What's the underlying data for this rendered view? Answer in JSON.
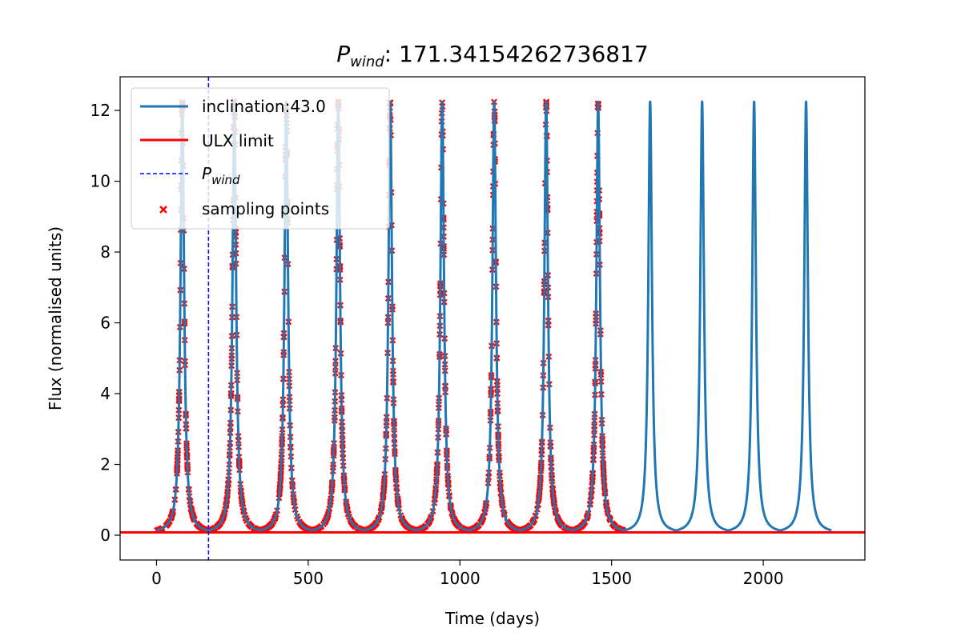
{
  "chart_data": {
    "type": "line",
    "title": "P_wind : 171.34154262736817",
    "title_symbol": "P",
    "title_subscript": "wind",
    "title_value": ": 171.34154262736817",
    "xlabel": "Time (days)",
    "ylabel": "Flux (normalised units)",
    "xlim": [
      -120,
      2335
    ],
    "ylim": [
      -0.7,
      12.95
    ],
    "x_ticks": [
      0,
      500,
      1000,
      1500,
      2000
    ],
    "y_ticks": [
      0,
      2,
      4,
      6,
      8,
      10,
      12
    ],
    "legend_position": "upper-left",
    "grid": false,
    "colors": {
      "curve": "#1f77b4",
      "ulx": "#ff0000",
      "pwind": "#0000ff",
      "samples": "#ff0000"
    },
    "series": [
      {
        "name": "inclination:43.0",
        "kind": "line",
        "x_start": 0,
        "x_end": 2225,
        "period": 171.34154262736817,
        "first_peak": 85,
        "peak_value": 12.25,
        "base_value": 0.05
      },
      {
        "name": "ULX limit",
        "kind": "hline",
        "y": 0.08
      },
      {
        "name": "P_wind",
        "name_symbol": "P",
        "name_subscript": "wind",
        "kind": "vline",
        "x": 171.34154262736817
      },
      {
        "name": "sampling points",
        "kind": "scatter",
        "x_start": 0,
        "x_end": 1605,
        "count": 1500
      }
    ]
  }
}
